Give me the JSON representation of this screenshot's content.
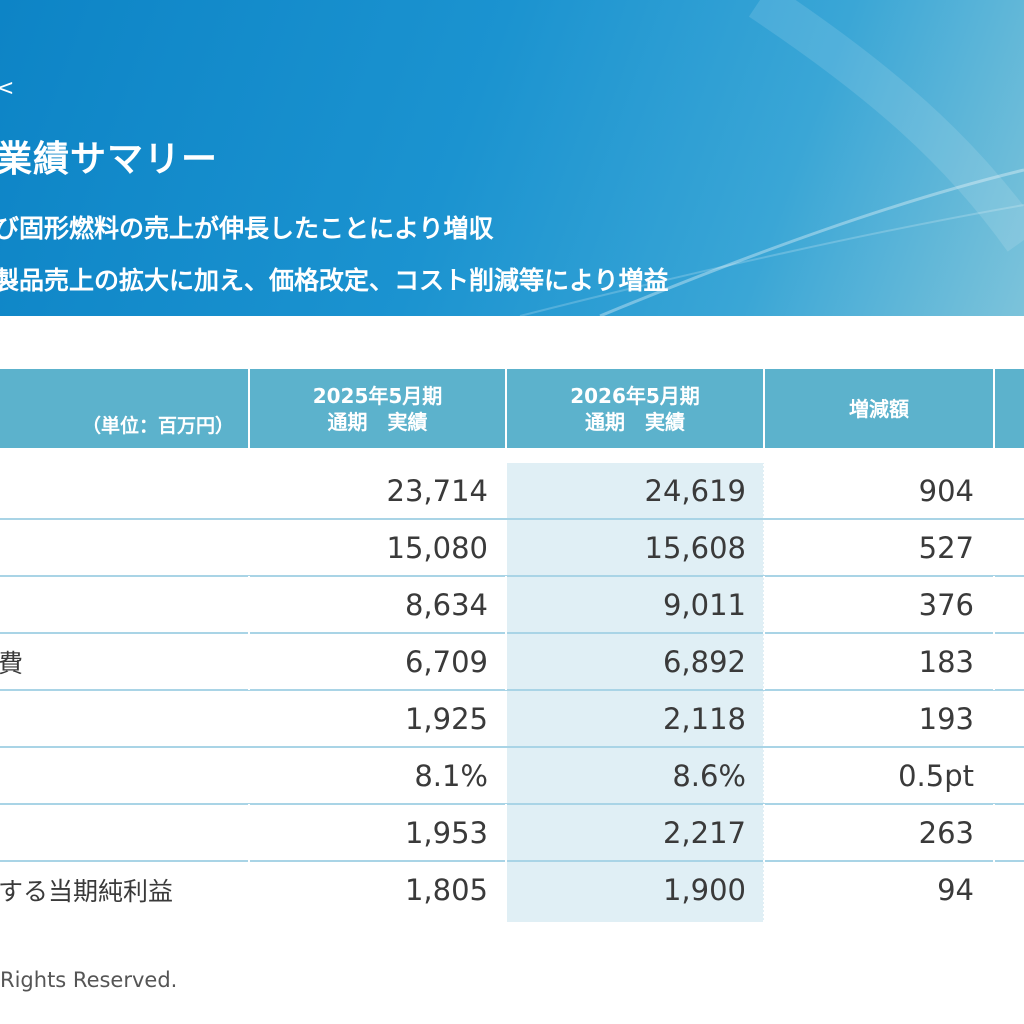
{
  "banner": {
    "glyph": "<",
    "title": "業績サマリー",
    "line1": "び固形燃料の売上が伸長したことにより増収",
    "line2": "製品売上の拡大に加え、価格改定、コスト削減等により増益"
  },
  "table": {
    "unit_label": "（単位：百万円）",
    "columns": [
      {
        "line1": "2025年5月期",
        "line2": "通期　実績"
      },
      {
        "line1": "2026年5月期",
        "line2": "通期　実績"
      },
      {
        "line1": "増減額",
        "line2": ""
      }
    ],
    "rows": [
      {
        "label": "",
        "fy25": "23,714",
        "fy26": "24,619",
        "diff": "904"
      },
      {
        "label": "",
        "fy25": "15,080",
        "fy26": "15,608",
        "diff": "527"
      },
      {
        "label": "",
        "fy25": "8,634",
        "fy26": "9,011",
        "diff": "376"
      },
      {
        "label": "費",
        "fy25": "6,709",
        "fy26": "6,892",
        "diff": "183"
      },
      {
        "label": "",
        "fy25": "1,925",
        "fy26": "2,118",
        "diff": "193"
      },
      {
        "label": "",
        "fy25": "8.1%",
        "fy26": "8.6%",
        "diff": "0.5pt"
      },
      {
        "label": "",
        "fy25": "1,953",
        "fy26": "2,217",
        "diff": "263"
      },
      {
        "label": "する当期純利益",
        "fy25": "1,805",
        "fy26": "1,900",
        "diff": "94"
      }
    ]
  },
  "footer": {
    "text": "Rights Reserved."
  },
  "colors": {
    "banner": "#1b93d0",
    "header": "#5cb2cc",
    "highlight": "#e0eff5",
    "rule": "#a9d4e6"
  }
}
